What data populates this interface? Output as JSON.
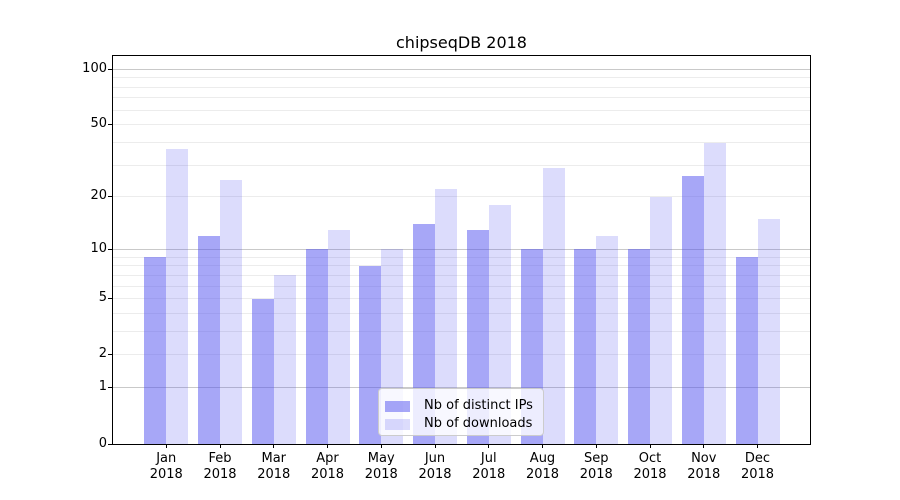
{
  "chart_data": {
    "type": "bar",
    "title": "chipseqDB 2018",
    "categories": [
      "Jan 2018",
      "Feb 2018",
      "Mar 2018",
      "Apr 2018",
      "May 2018",
      "Jun 2018",
      "Jul 2018",
      "Aug 2018",
      "Sep 2018",
      "Oct 2018",
      "Nov 2018",
      "Dec 2018"
    ],
    "series": [
      {
        "name": "Nb of distinct IPs",
        "color": "#5050f0",
        "alpha": 0.5,
        "values": [
          9,
          12,
          5,
          10,
          8,
          14,
          13,
          10,
          10,
          10,
          26,
          9
        ]
      },
      {
        "name": "Nb of downloads",
        "color": "#5050f0",
        "alpha": 0.2,
        "values": [
          37,
          25,
          7,
          13,
          10,
          22,
          18,
          29,
          12,
          20,
          40,
          15
        ]
      }
    ],
    "xlabel": "",
    "ylabel": "",
    "yscale": "log1p",
    "yticks": [
      0,
      1,
      2,
      5,
      10,
      20,
      50,
      100
    ],
    "ylim": [
      0,
      119
    ],
    "grid": "horizontal; major decade lines (1,10,100) darker, minor log lines lighter",
    "legend_position": "lower center",
    "colors": {
      "major_grid": "#c9c9c9",
      "minor_grid": "#ececec",
      "axis": "#000000",
      "legend_border": "#cccccc"
    }
  }
}
